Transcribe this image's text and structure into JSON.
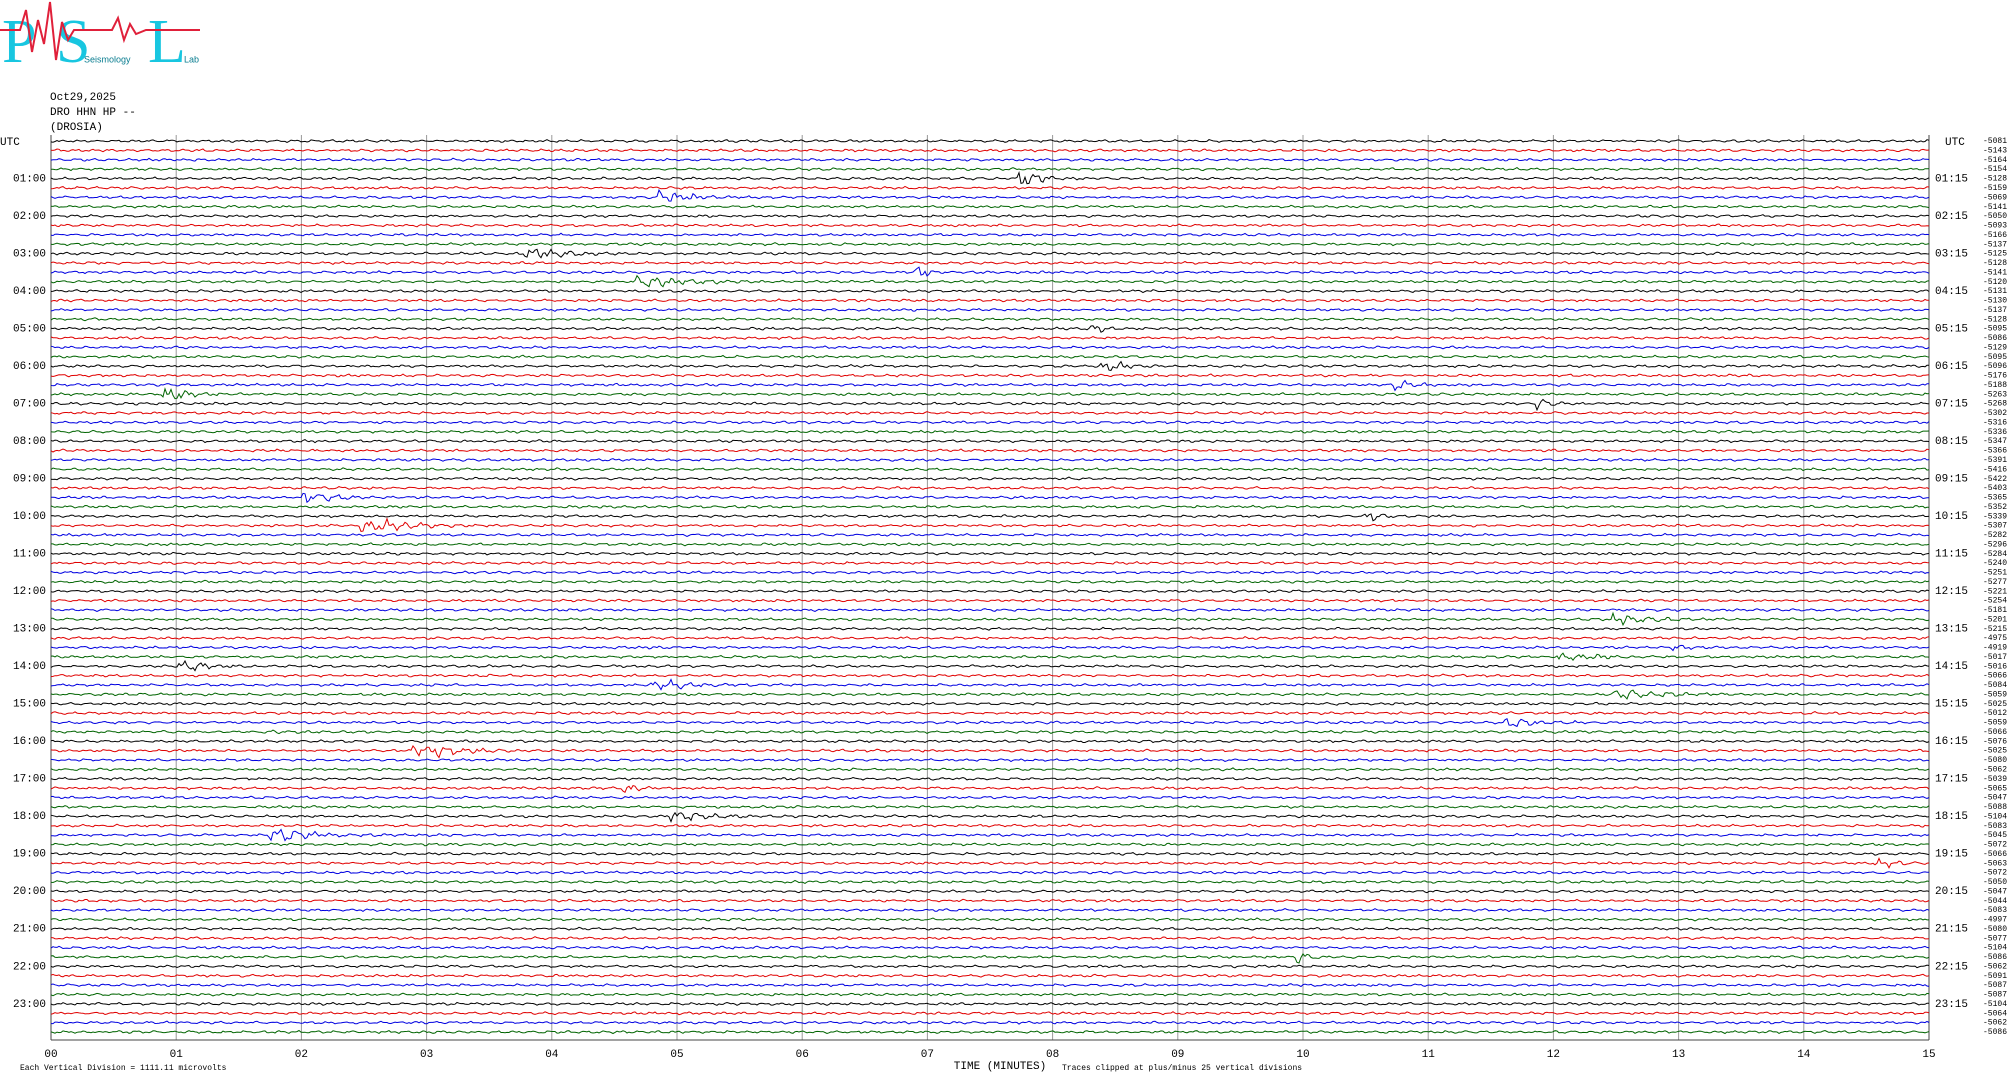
{
  "logo": {
    "letters": [
      "P",
      "S",
      "L"
    ],
    "words": [
      "Seismology",
      "Lab"
    ]
  },
  "header": {
    "date": "Oct29,2025",
    "station": "DRO HHN HP --",
    "location": "(DROSIA)"
  },
  "utc_label": "UTC",
  "left_times": [
    "01:00",
    "02:00",
    "03:00",
    "04:00",
    "05:00",
    "06:00",
    "07:00",
    "08:00",
    "09:00",
    "10:00",
    "11:00",
    "12:00",
    "13:00",
    "14:00",
    "15:00",
    "16:00",
    "17:00",
    "18:00",
    "19:00",
    "20:00",
    "21:00",
    "22:00",
    "23:00"
  ],
  "right_times": [
    "01:15",
    "02:15",
    "03:15",
    "04:15",
    "05:15",
    "06:15",
    "07:15",
    "08:15",
    "09:15",
    "10:15",
    "11:15",
    "12:15",
    "13:15",
    "14:15",
    "15:15",
    "16:15",
    "17:15",
    "18:15",
    "19:15",
    "20:15",
    "21:15",
    "22:15",
    "23:15"
  ],
  "offsets": [
    "-5081",
    "-5143",
    "-5164",
    "-5154",
    "-5128",
    "-5159",
    "-5069",
    "-5141",
    "-5050",
    "-5093",
    "-5166",
    "-5137",
    "-5125",
    "-5128",
    "-5141",
    "-5120",
    "-5131",
    "-5130",
    "-5137",
    "-5128",
    "-5095",
    "-5086",
    "-5129",
    "-5095",
    "-5096",
    "-5176",
    "-5188",
    "-5263",
    "-5268",
    "-5302",
    "-5316",
    "-5336",
    "-5347",
    "-5366",
    "-5391",
    "-5416",
    "-5422",
    "-5403",
    "-5365",
    "-5352",
    "-5339",
    "-5307",
    "-5282",
    "-5296",
    "-5284",
    "-5240",
    "-5251",
    "-5277",
    "-5221",
    "-5254",
    "-5181",
    "-5201",
    "-5215",
    "-4975",
    "-4919",
    "-5017",
    "-5016",
    "-5066",
    "-5084",
    "-5059",
    "-5025",
    "-5012",
    "-5059",
    "-5066",
    "-5076",
    "-5025",
    "-5080",
    "-5062",
    "-5039",
    "-5065",
    "-5047",
    "-5088",
    "-5104",
    "-5083",
    "-5045",
    "-5072",
    "-5066",
    "-5063",
    "-5072",
    "-5050",
    "-5047",
    "-5044",
    "-5083",
    "-4997",
    "-5080",
    "-5077",
    "-5104",
    "-5086",
    "-5062",
    "-5091",
    "-5087",
    "-5087",
    "-5104",
    "-5064",
    "-5062",
    "-5086"
  ],
  "x_ticks": [
    "00",
    "01",
    "02",
    "03",
    "04",
    "05",
    "06",
    "07",
    "08",
    "09",
    "10",
    "11",
    "12",
    "13",
    "14",
    "15"
  ],
  "x_label": "TIME (MINUTES)",
  "footer_left": "Each Vertical Division = 1111.11 microvolts",
  "footer_right": "Traces clipped at plus/minus 25 vertical divisions"
}
